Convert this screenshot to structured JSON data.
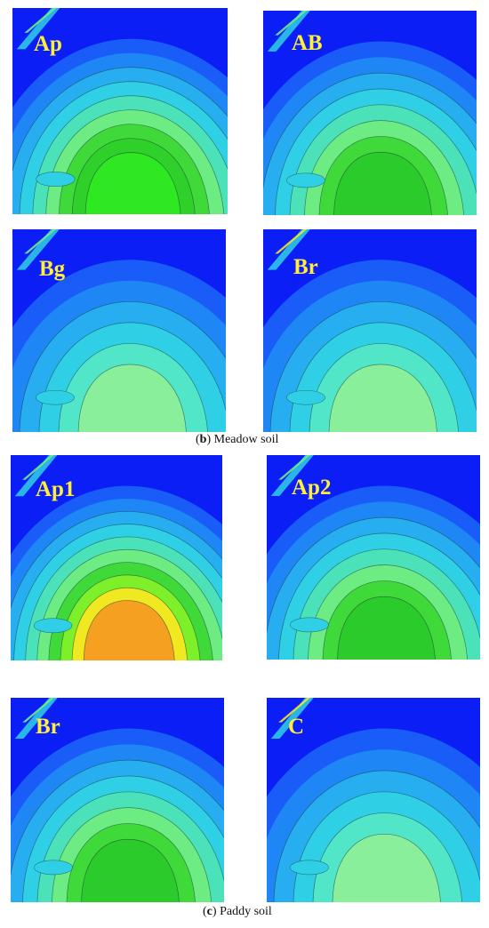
{
  "colors": {
    "background": "#0a1ef5",
    "label": "#ffee3a"
  },
  "groups": [
    {
      "caption_letter": "b",
      "caption_text": " Meadow soil",
      "panels": [
        {
          "label": "Ap",
          "intensity": "high"
        },
        {
          "label": "AB",
          "intensity": "medium"
        },
        {
          "label": "Bg",
          "intensity": "low"
        },
        {
          "label": "Br",
          "intensity": "low-streak"
        }
      ]
    },
    {
      "caption_letter": "c",
      "caption_text": " Paddy soil",
      "panels": [
        {
          "label": "Ap1",
          "intensity": "peak"
        },
        {
          "label": "Ap2",
          "intensity": "medium"
        },
        {
          "label": "Br",
          "intensity": "medium"
        },
        {
          "label": "C",
          "intensity": "low-streak"
        }
      ]
    }
  ]
}
